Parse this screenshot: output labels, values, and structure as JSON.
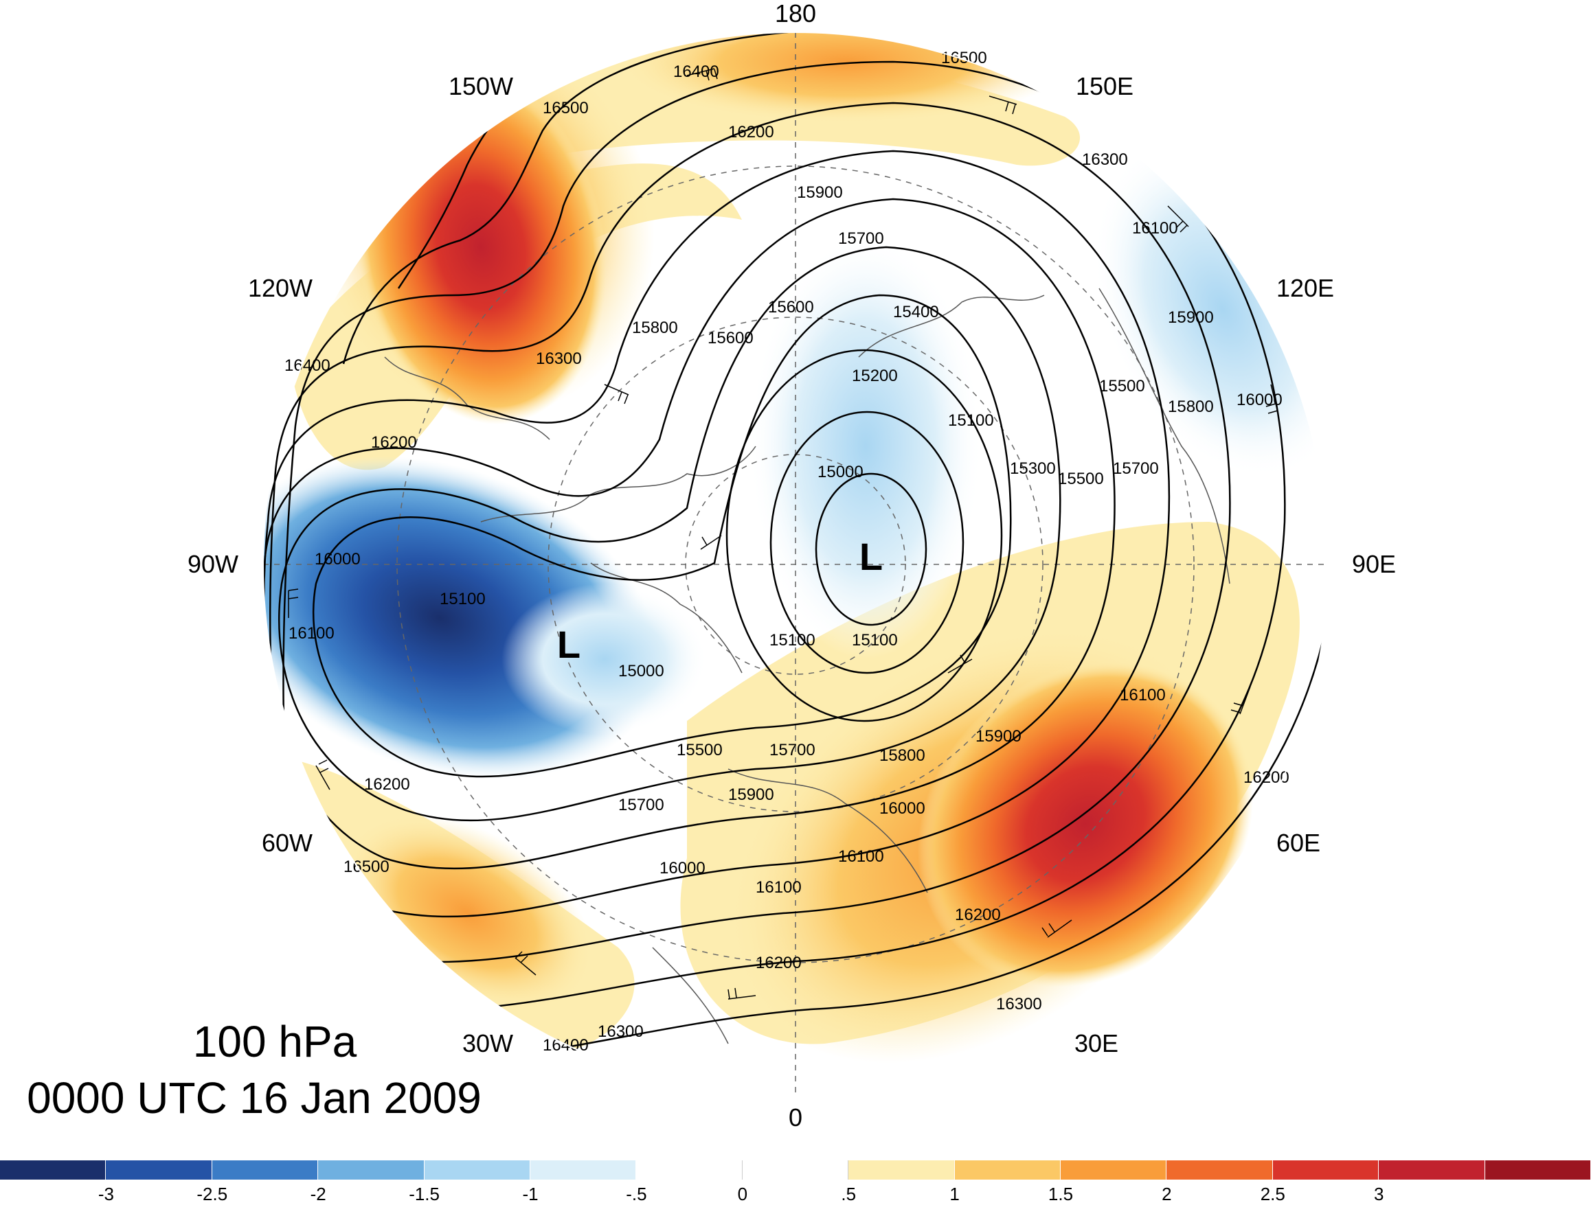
{
  "title": {
    "level": "100 hPa",
    "valid_time": "0000 UTC 16 Jan 2009"
  },
  "longitude_labels": {
    "lon_180": "180",
    "lon_150E": "150E",
    "lon_120E": "120E",
    "lon_90E": "90E",
    "lon_60E": "60E",
    "lon_30E": "30E",
    "lon_0": "0",
    "lon_30W": "30W",
    "lon_60W": "60W",
    "lon_90W": "90W",
    "lon_120W": "120W",
    "lon_150W": "150W"
  },
  "low_markers": [
    "L",
    "L"
  ],
  "contour_labels": [
    "16500",
    "16400",
    "16300",
    "16200",
    "16100",
    "16000",
    "15900",
    "15800",
    "15700",
    "15600",
    "15500",
    "15400",
    "15300",
    "15200",
    "15100",
    "15000"
  ],
  "colorbar": {
    "colors": [
      "#1a2f6b",
      "#2553a6",
      "#3b7cc6",
      "#6fb0e0",
      "#a9d6f2",
      "#dceff9",
      "#ffffff",
      "#ffffff",
      "#fdedb0",
      "#fbc865",
      "#f99d3a",
      "#f06a2b",
      "#d9342b",
      "#c1222e",
      "#9b1520"
    ],
    "tick_labels": [
      "-3",
      "-2.5",
      "-2",
      "-1.5",
      "-1",
      "-.5",
      "0",
      ".5",
      "1",
      "1.5",
      "2",
      "2.5",
      "3"
    ]
  }
}
